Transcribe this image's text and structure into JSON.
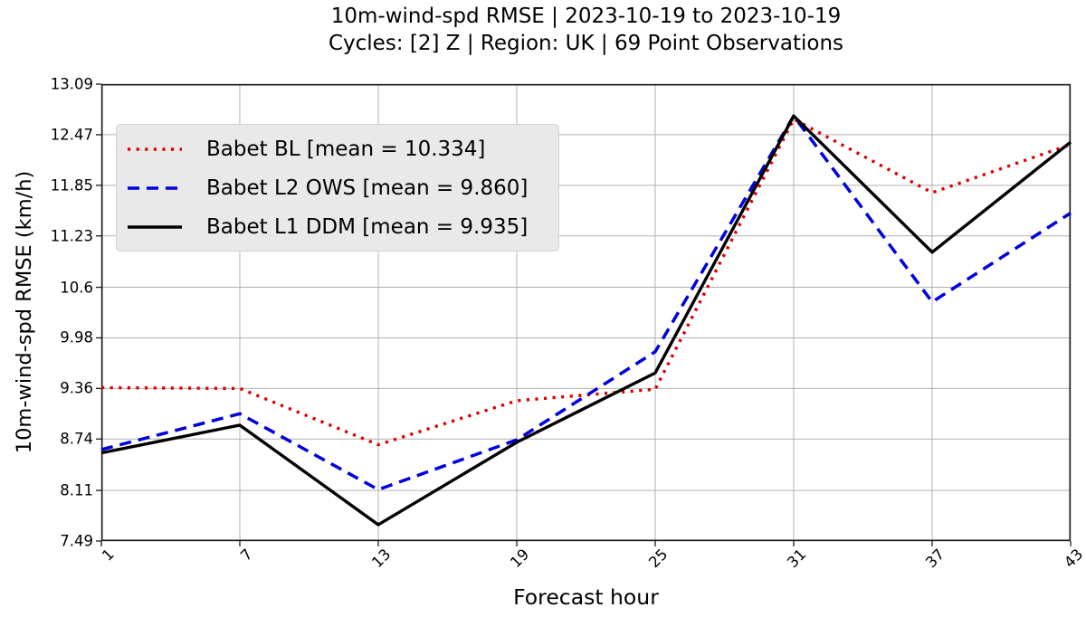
{
  "title": {
    "line1": "10m-wind-spd RMSE | 2023-10-19 to 2023-10-19",
    "line2": "Cycles: [2] Z | Region: UK | 69 Point Observations"
  },
  "chart_data": {
    "type": "line",
    "title": "10m-wind-spd RMSE | 2023-10-19 to 2023-10-19",
    "subtitle": "Cycles: [2] Z | Region: UK | 69 Point Observations",
    "xlabel": "Forecast hour",
    "ylabel": "10m-wind-spd RMSE (km/h)",
    "x": [
      1,
      7,
      13,
      19,
      25,
      31,
      37,
      43
    ],
    "xlim": [
      1,
      43
    ],
    "ylim": [
      7.49,
      13.09
    ],
    "grid": true,
    "legend_position": "upper left",
    "xticks": [
      1,
      7,
      13,
      19,
      25,
      31,
      37,
      43
    ],
    "xtick_labels": [
      "1",
      "7",
      "13",
      "19",
      "25",
      "31",
      "37",
      "43"
    ],
    "yticks": [
      13.09,
      12.47,
      11.85,
      11.23,
      10.6,
      9.98,
      9.36,
      8.74,
      8.11,
      7.49
    ],
    "ytick_labels": [
      "13.09",
      "12.47",
      "11.85",
      "11.23",
      "10.6",
      "9.98",
      "9.36",
      "8.74",
      "8.11",
      "7.49"
    ],
    "series": [
      {
        "name": "Babet BL",
        "legend_label": "Babet BL [mean = 10.334]",
        "mean": 10.334,
        "color": "#dd0000",
        "line_style": "dotted",
        "dash": "3.2 6.4",
        "width": 3.4,
        "values": [
          9.37,
          9.36,
          8.67,
          9.21,
          9.35,
          12.66,
          11.76,
          12.35
        ]
      },
      {
        "name": "Babet L2 OWS",
        "legend_label": "Babet L2 OWS [mean = 9.860]",
        "mean": 9.86,
        "color": "#0000dd",
        "line_style": "dashed",
        "dash": "13 8",
        "width": 3.5,
        "values": [
          8.61,
          9.05,
          8.12,
          8.73,
          9.81,
          12.7,
          10.42,
          11.51
        ]
      },
      {
        "name": "Babet L1 DDM",
        "legend_label": "Babet L1 DDM [mean = 9.935]",
        "mean": 9.935,
        "color": "#000000",
        "line_style": "solid",
        "dash": "none",
        "width": 3.4,
        "values": [
          8.57,
          8.91,
          7.69,
          8.7,
          9.55,
          12.7,
          11.03,
          12.38
        ]
      }
    ]
  }
}
